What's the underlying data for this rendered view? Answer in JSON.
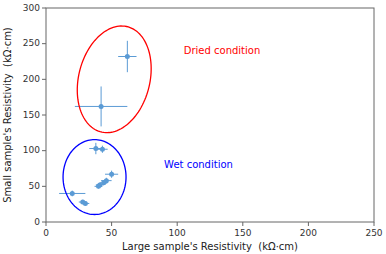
{
  "chart_data": {
    "type": "scatter",
    "xlabel": "Large sample's Resistivity  (kΩ·cm)",
    "ylabel": "Small sample's Resistivity  (kΩ·cm)",
    "xlim": [
      0,
      250
    ],
    "ylim": [
      0,
      300
    ],
    "xticks": [
      0,
      50,
      100,
      150,
      200,
      250
    ],
    "yticks": [
      0,
      50,
      100,
      150,
      200,
      250,
      300
    ],
    "series": [
      {
        "color": "#5b9bd5",
        "marker": "circle",
        "x": [
          62,
          42
        ],
        "values": [
          232,
          162
        ],
        "xerr": [
          7,
          20
        ],
        "yerr": [
          22,
          28
        ]
      },
      {
        "color": "#5b9bd5",
        "marker": "circle",
        "x": [
          38,
          43,
          50,
          46,
          44,
          41,
          40,
          20,
          28,
          30
        ],
        "values": [
          103,
          102,
          67,
          58,
          55,
          52,
          50,
          40,
          28,
          26
        ],
        "xerr": [
          5,
          4,
          5,
          4,
          3,
          3,
          3,
          10,
          3,
          3
        ],
        "yerr": [
          8,
          5,
          5,
          4,
          3,
          3,
          3,
          4,
          3,
          3
        ]
      }
    ],
    "ellipses": [
      {
        "x": 52,
        "y": 200,
        "width": 55,
        "height": 150,
        "angle": -5,
        "color": "red"
      },
      {
        "x": 37,
        "y": 63,
        "width": 48,
        "height": 105,
        "angle": 0,
        "color": "blue"
      }
    ],
    "annotations": [
      {
        "x": 105,
        "y": 240,
        "text": "Dried condition",
        "color": "red"
      },
      {
        "x": 90,
        "y": 80,
        "text": "Wet condition",
        "color": "blue"
      }
    ]
  }
}
